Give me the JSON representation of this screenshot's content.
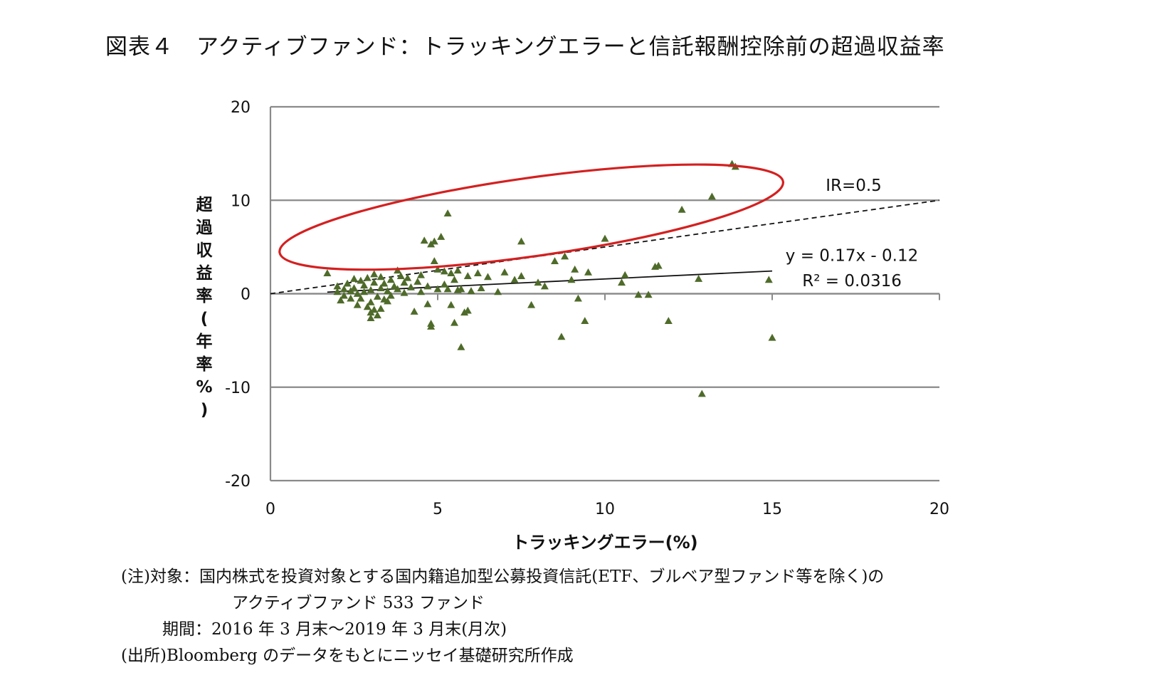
{
  "title": "図表４　アクティブファンド：トラッキングエラーと信託報酬控除前の超過収益率",
  "notes": {
    "line1": "(注)対象：国内株式を投資対象とする国内籍追加型公募投資信託(ETF、ブルベア型ファンド等を除く)の",
    "line2": "アクティブファンド 533 ファンド",
    "line3": "期間：2016 年 3 月末～2019 年 3 月末(月次)",
    "line4": "(出所)Bloomberg のデータをもとにニッセイ基礎研究所作成"
  },
  "chart_data": {
    "type": "scatter",
    "xlabel": "トラッキングエラー(%)",
    "ylabel": "超過収益率(年率%)",
    "xlim": [
      0,
      20
    ],
    "ylim": [
      -20,
      20
    ],
    "xticks": [
      "0",
      "5",
      "10",
      "15",
      "20"
    ],
    "yticks": [
      "20",
      "10",
      "0",
      "-10",
      "-20"
    ],
    "grid_y": true,
    "marker_color": "#4f6b2a",
    "ellipse_color": "#d42020",
    "annotations": {
      "ir_label": "IR=0.5",
      "trend_eq": "y = 0.17x - 0.12",
      "r2": "R² = 0.0316"
    },
    "ir_line": {
      "slope": 0.5,
      "intercept": 0,
      "x": [
        0,
        20
      ],
      "style": "dashed"
    },
    "trendline": {
      "slope": 0.17,
      "intercept": -0.12,
      "x": [
        1.7,
        15
      ]
    },
    "highlight_ellipse": {
      "center": [
        7.8,
        8.2
      ],
      "rx_data": 7.6,
      "ry_data": 4.2,
      "angle_deg": -8
    },
    "points": [
      [
        1.7,
        2.2
      ],
      [
        2.0,
        0.8
      ],
      [
        2.0,
        0.2
      ],
      [
        2.1,
        -0.7
      ],
      [
        2.2,
        0.5
      ],
      [
        2.2,
        -0.2
      ],
      [
        2.3,
        1.1
      ],
      [
        2.4,
        0.3
      ],
      [
        2.4,
        -0.5
      ],
      [
        2.5,
        1.6
      ],
      [
        2.5,
        0.6
      ],
      [
        2.6,
        -1.2
      ],
      [
        2.6,
        0.0
      ],
      [
        2.7,
        1.4
      ],
      [
        2.7,
        -0.5
      ],
      [
        2.8,
        0.9
      ],
      [
        2.8,
        0.2
      ],
      [
        2.9,
        -1.4
      ],
      [
        2.9,
        1.7
      ],
      [
        3.0,
        -2.0
      ],
      [
        3.0,
        -2.6
      ],
      [
        3.0,
        -0.9
      ],
      [
        3.0,
        0.4
      ],
      [
        3.1,
        -1.7
      ],
      [
        3.1,
        2.1
      ],
      [
        3.1,
        1.2
      ],
      [
        3.2,
        -2.3
      ],
      [
        3.2,
        -0.3
      ],
      [
        3.3,
        0.6
      ],
      [
        3.3,
        1.8
      ],
      [
        3.3,
        -1.6
      ],
      [
        3.4,
        -0.6
      ],
      [
        3.4,
        1.1
      ],
      [
        3.5,
        -0.8
      ],
      [
        3.5,
        0.3
      ],
      [
        3.6,
        1.5
      ],
      [
        3.6,
        -0.2
      ],
      [
        3.7,
        0.8
      ],
      [
        3.8,
        0.5
      ],
      [
        3.8,
        2.5
      ],
      [
        3.9,
        1.9
      ],
      [
        4.0,
        1.2
      ],
      [
        4.0,
        0.1
      ],
      [
        4.1,
        1.7
      ],
      [
        4.2,
        0.7
      ],
      [
        4.3,
        -1.9
      ],
      [
        4.4,
        1.3
      ],
      [
        4.5,
        0.2
      ],
      [
        4.5,
        2.0
      ],
      [
        4.6,
        5.7
      ],
      [
        4.7,
        -1.1
      ],
      [
        4.7,
        0.8
      ],
      [
        4.8,
        5.3
      ],
      [
        4.8,
        -3.2
      ],
      [
        4.8,
        -3.5
      ],
      [
        4.9,
        5.6
      ],
      [
        4.9,
        3.5
      ],
      [
        5.0,
        2.6
      ],
      [
        5.0,
        0.5
      ],
      [
        5.1,
        6.1
      ],
      [
        5.2,
        2.4
      ],
      [
        5.2,
        1.0
      ],
      [
        5.3,
        8.6
      ],
      [
        5.3,
        0.5
      ],
      [
        5.4,
        2.2
      ],
      [
        5.4,
        -1.2
      ],
      [
        5.5,
        -3.1
      ],
      [
        5.5,
        1.5
      ],
      [
        5.6,
        0.4
      ],
      [
        5.6,
        2.5
      ],
      [
        5.7,
        -5.7
      ],
      [
        5.7,
        0.5
      ],
      [
        5.8,
        -2.0
      ],
      [
        5.9,
        -1.8
      ],
      [
        5.9,
        1.9
      ],
      [
        6.0,
        0.3
      ],
      [
        6.2,
        2.2
      ],
      [
        6.3,
        0.6
      ],
      [
        6.5,
        1.8
      ],
      [
        6.8,
        0.2
      ],
      [
        7.0,
        2.3
      ],
      [
        7.3,
        1.5
      ],
      [
        7.5,
        5.6
      ],
      [
        7.5,
        1.9
      ],
      [
        7.8,
        -1.2
      ],
      [
        8.0,
        1.2
      ],
      [
        8.2,
        0.8
      ],
      [
        8.5,
        3.5
      ],
      [
        8.8,
        4.0
      ],
      [
        9.0,
        1.5
      ],
      [
        9.1,
        2.6
      ],
      [
        8.7,
        -4.6
      ],
      [
        9.2,
        -0.5
      ],
      [
        9.4,
        -2.9
      ],
      [
        9.5,
        2.3
      ],
      [
        10.0,
        5.9
      ],
      [
        10.5,
        1.2
      ],
      [
        10.6,
        2.0
      ],
      [
        11.0,
        -0.1
      ],
      [
        11.3,
        -0.1
      ],
      [
        11.5,
        2.9
      ],
      [
        11.6,
        3.0
      ],
      [
        11.9,
        -2.9
      ],
      [
        12.3,
        9.0
      ],
      [
        12.8,
        1.6
      ],
      [
        12.9,
        -10.7
      ],
      [
        13.2,
        10.4
      ],
      [
        13.8,
        13.9
      ],
      [
        13.9,
        13.6
      ],
      [
        14.9,
        1.5
      ],
      [
        15.0,
        -4.7
      ]
    ]
  }
}
